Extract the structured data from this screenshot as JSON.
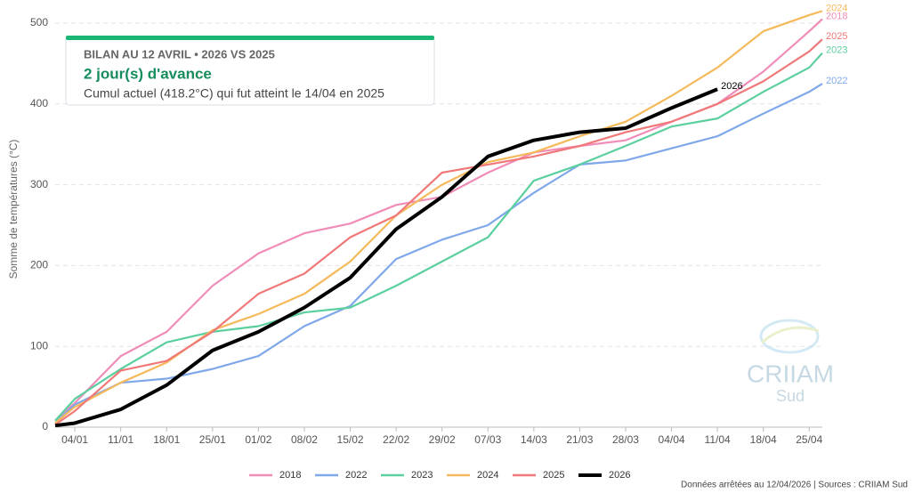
{
  "chart_data": {
    "type": "line",
    "y_label": "Somme de températures (°C)",
    "box": {
      "title": "BILAN AU 12 AVRIL • 2026 VS 2025",
      "headline": "2 jour(s) d'avance",
      "detail": "Cumul actuel (418.2°C) qui fut atteint le 14/04 en 2025"
    },
    "footer": "Données arrêtées au 12/04/2026 | Sources : CRIIAM Sud",
    "logo": {
      "name": "CRIIAM",
      "sub": "Sud"
    },
    "x": [
      1,
      4,
      11,
      18,
      25,
      32,
      39,
      46,
      53,
      60,
      67,
      74,
      81,
      88,
      95,
      102,
      109,
      116,
      118
    ],
    "xlim": [
      1,
      118
    ],
    "xticks": [
      {
        "value": 4,
        "label": "04/01"
      },
      {
        "value": 11,
        "label": "11/01"
      },
      {
        "value": 18,
        "label": "18/01"
      },
      {
        "value": 25,
        "label": "25/01"
      },
      {
        "value": 32,
        "label": "01/02"
      },
      {
        "value": 39,
        "label": "08/02"
      },
      {
        "value": 46,
        "label": "15/02"
      },
      {
        "value": 53,
        "label": "22/02"
      },
      {
        "value": 60,
        "label": "29/02"
      },
      {
        "value": 67,
        "label": "07/03"
      },
      {
        "value": 74,
        "label": "14/03"
      },
      {
        "value": 81,
        "label": "21/03"
      },
      {
        "value": 88,
        "label": "28/03"
      },
      {
        "value": 95,
        "label": "04/04"
      },
      {
        "value": 102,
        "label": "11/04"
      },
      {
        "value": 109,
        "label": "18/04"
      },
      {
        "value": 116,
        "label": "25/04"
      }
    ],
    "ylim": [
      0,
      500
    ],
    "yticks": [
      0,
      100,
      200,
      300,
      400,
      500
    ],
    "grid": true,
    "series": [
      {
        "name": "2018",
        "color": "#f08cb8",
        "values": [
          8,
          30,
          88,
          118,
          175,
          215,
          240,
          252,
          275,
          285,
          315,
          340,
          348,
          355,
          378,
          400,
          440,
          490,
          505
        ]
      },
      {
        "name": "2022",
        "color": "#7fa8ea",
        "values": [
          5,
          28,
          55,
          60,
          72,
          88,
          125,
          150,
          208,
          232,
          250,
          290,
          325,
          330,
          345,
          360,
          388,
          415,
          425
        ]
      },
      {
        "name": "2023",
        "color": "#5ccf9f",
        "values": [
          8,
          35,
          72,
          105,
          118,
          125,
          142,
          148,
          175,
          205,
          235,
          305,
          325,
          348,
          372,
          382,
          415,
          445,
          463
        ]
      },
      {
        "name": "2024",
        "color": "#f5b95a",
        "values": [
          5,
          25,
          55,
          80,
          120,
          140,
          165,
          205,
          262,
          300,
          328,
          340,
          360,
          378,
          410,
          445,
          490,
          510,
          515
        ]
      },
      {
        "name": "2025",
        "color": "#f07878",
        "values": [
          3,
          20,
          70,
          82,
          118,
          165,
          190,
          235,
          262,
          315,
          325,
          335,
          348,
          365,
          378,
          400,
          428,
          465,
          480
        ]
      },
      {
        "name": "2026",
        "color": "#000000",
        "values": [
          2,
          5,
          22,
          52,
          95,
          118,
          148,
          185,
          245,
          285,
          335,
          355,
          365,
          370,
          395,
          418.2,
          null,
          null,
          null
        ]
      }
    ]
  }
}
